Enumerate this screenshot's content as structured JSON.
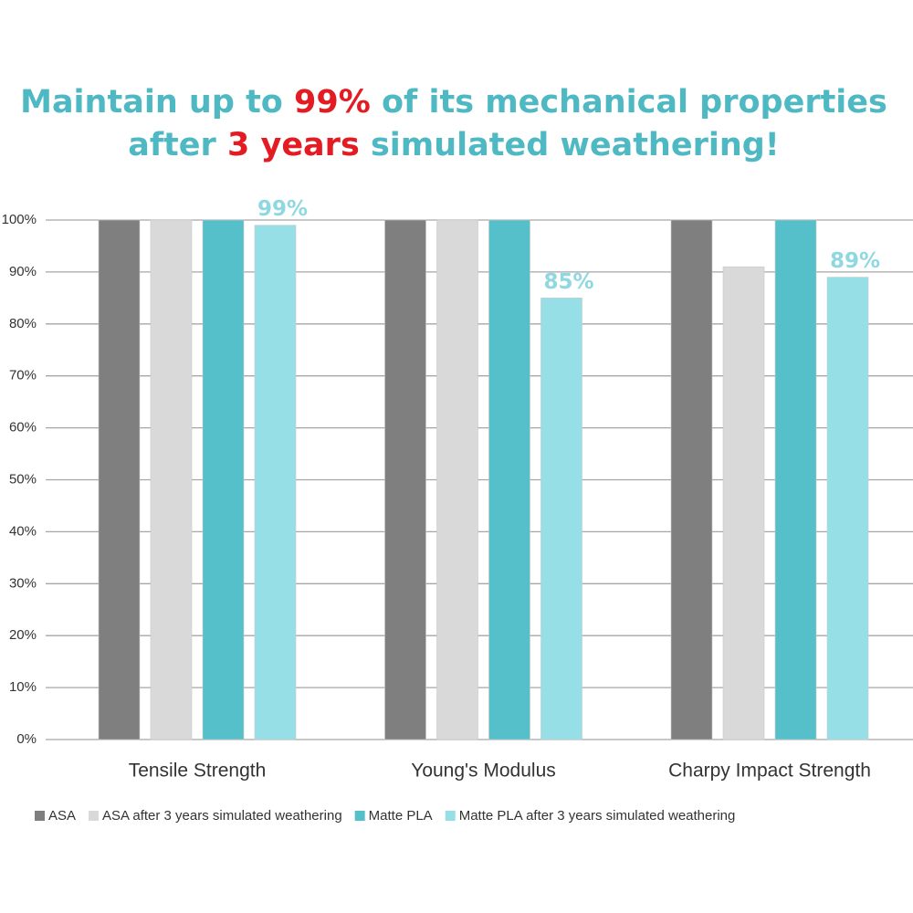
{
  "chart_data": {
    "type": "bar",
    "title_lines": [
      [
        {
          "text": "Maintain up to ",
          "color": "#4fb9c3"
        },
        {
          "text": "99%",
          "color": "#e31b23"
        },
        {
          "text": " of its mechanical properties",
          "color": "#4fb9c3"
        }
      ],
      [
        {
          "text": "after ",
          "color": "#4fb9c3"
        },
        {
          "text": "3 years",
          "color": "#e31b23"
        },
        {
          "text": " simulated weathering!",
          "color": "#4fb9c3"
        }
      ]
    ],
    "categories": [
      "Tensile Strength",
      "Young's Modulus",
      "Charpy Impact Strength"
    ],
    "series": [
      {
        "name": "ASA",
        "color": "#7f7f7f",
        "values": [
          100,
          100,
          100
        ]
      },
      {
        "name": "ASA after 3 years simulated weathering",
        "color": "#d9d9d9",
        "values": [
          100,
          100,
          91
        ]
      },
      {
        "name": "Matte PLA",
        "color": "#55c0ca",
        "values": [
          100,
          100,
          100
        ]
      },
      {
        "name": "Matte PLA after 3 years simulated weathering",
        "color": "#97dfe7",
        "values": [
          99,
          85,
          89
        ],
        "value_labels": [
          "99%",
          "85%",
          "89%"
        ]
      }
    ],
    "ylim": [
      0,
      100
    ],
    "yticks": [
      {
        "value": 0,
        "label": "0%"
      },
      {
        "value": 10,
        "label": "10%"
      },
      {
        "value": 20,
        "label": "20%"
      },
      {
        "value": 30,
        "label": "30%"
      },
      {
        "value": 40,
        "label": "40%"
      },
      {
        "value": 50,
        "label": "50%"
      },
      {
        "value": 60,
        "label": "60%"
      },
      {
        "value": 70,
        "label": "70%"
      },
      {
        "value": 80,
        "label": "80%"
      },
      {
        "value": 90,
        "label": "90%"
      },
      {
        "value": 100,
        "label": "100%"
      }
    ],
    "grid": true,
    "legend": "bottom"
  }
}
